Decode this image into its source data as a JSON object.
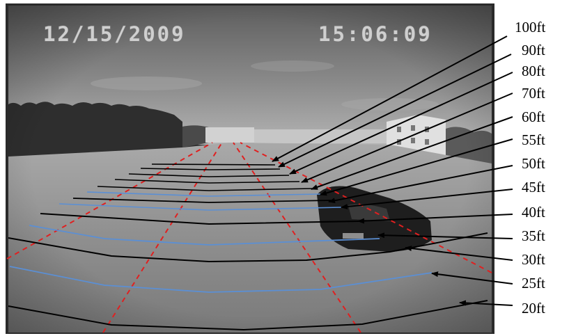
{
  "overlay": {
    "timestamp_date": "12/15/2009",
    "timestamp_time": "15:06:09"
  },
  "distance_labels": [
    "100ft",
    "90ft",
    "80ft",
    "70ft",
    "60ft",
    "55ft",
    "50ft",
    "45ft",
    "40ft",
    "35ft",
    "30ft",
    "25ft",
    "20ft"
  ],
  "colors": {
    "guide_line_primary": "#000000",
    "guide_line_secondary": "#5b8fd4",
    "lane_guide": "#e02020",
    "callout_arrow": "#000000"
  }
}
